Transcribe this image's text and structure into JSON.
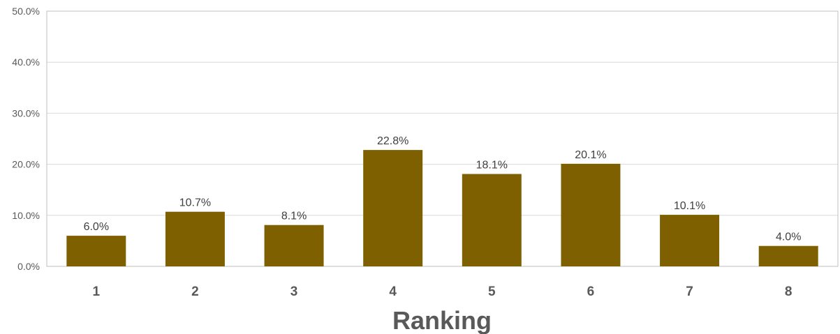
{
  "chart_data": {
    "type": "bar",
    "categories": [
      "1",
      "2",
      "3",
      "4",
      "5",
      "6",
      "7",
      "8"
    ],
    "values": [
      6.0,
      10.7,
      8.1,
      22.8,
      18.1,
      20.1,
      10.1,
      4.0
    ],
    "data_labels": [
      "6.0%",
      "10.7%",
      "8.1%",
      "22.8%",
      "18.1%",
      "20.1%",
      "10.1%",
      "4.0%"
    ],
    "yticks": [
      0,
      10,
      20,
      30,
      40,
      50
    ],
    "ytick_labels": [
      "0.0%",
      "10.0%",
      "20.0%",
      "30.0%",
      "40.0%",
      "50.0%"
    ],
    "ylim": [
      0,
      50
    ],
    "xlabel": "Ranking",
    "ylabel": "",
    "title": "",
    "grid": true,
    "legend": "none",
    "bar_color": "#7f6000",
    "grid_color": "#d9d9d9",
    "axis_color": "#bfbfbf"
  }
}
